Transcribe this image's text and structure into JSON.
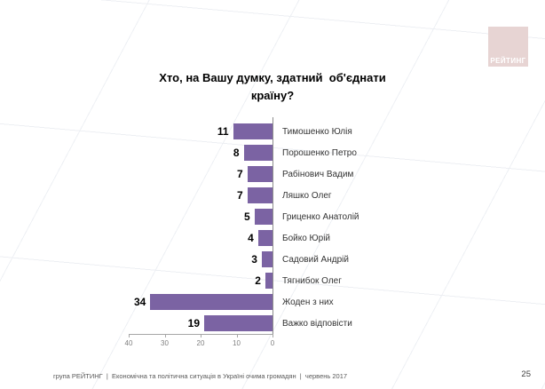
{
  "slide": {
    "logo_text": "РЕЙТИНГ",
    "title_lines": [
      "Хто, на Вашу думку, здатний  об'єднати",
      "країну?"
    ],
    "footer": "група РЕЙТИНГ  |  Економічна та політична ситуація в Україні очима громадян  |  червень 2017",
    "page_number": "25"
  },
  "chart_data": {
    "type": "bar",
    "orientation": "horizontal",
    "value_axis_reversed": true,
    "title": "Хто, на Вашу думку, здатний об'єднати країну?",
    "categories": [
      "Тимошенко Юлія",
      "Порошенко Петро",
      "Рабінович Вадим",
      "Ляшко Олег",
      "Гриценко Анатолій",
      "Бойко Юрій",
      "Садовий Андрій",
      "Тягнибок Олег",
      "Жоден з них",
      "Важко відповісти"
    ],
    "values": [
      11,
      8,
      7,
      7,
      5,
      4,
      3,
      2,
      34,
      19
    ],
    "xlabel": "",
    "ylabel": "",
    "xlim": [
      0,
      40
    ],
    "x_ticks": [
      40,
      30,
      20,
      10,
      0
    ],
    "grid": false,
    "legend": false,
    "bar_color": "#7b63a3",
    "axis_color": "#a6a6a6",
    "tick_label_color": "#7f7f7f",
    "value_label_color": "#000000",
    "category_label_color": "#333333"
  }
}
